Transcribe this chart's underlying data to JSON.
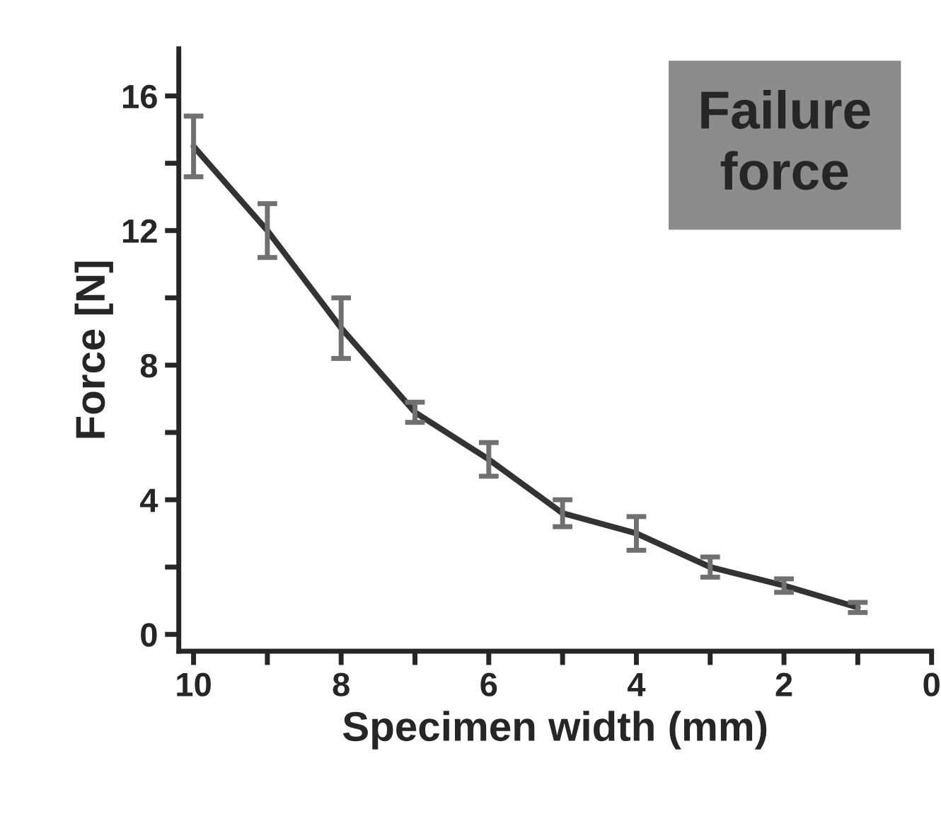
{
  "chart_data": {
    "type": "line",
    "xlabel": "Specimen width (mm)",
    "ylabel": "Force [N]",
    "annotations": [
      "Failure\nforce"
    ],
    "x": [
      10,
      9,
      8,
      7,
      6,
      5,
      4,
      3,
      2,
      1
    ],
    "series": [
      {
        "color": "#333333",
        "values": [
          14.5,
          12.0,
          9.1,
          6.6,
          5.2,
          3.6,
          3.0,
          2.0,
          1.45,
          0.8
        ],
        "errors": [
          0.9,
          0.8,
          0.9,
          0.3,
          0.5,
          0.4,
          0.5,
          0.3,
          0.2,
          0.15
        ]
      }
    ],
    "xlim": [
      10.2,
      0
    ],
    "ylim": [
      -0.5,
      17.4
    ],
    "xticks": [
      10,
      {
        "value": 9,
        "label": null
      },
      8,
      {
        "value": 7,
        "label": null
      },
      6,
      {
        "value": 5,
        "label": null
      },
      4,
      {
        "value": 3,
        "label": null
      },
      2,
      {
        "value": 1,
        "label": null
      },
      0
    ],
    "yticks": [
      0,
      {
        "value": 2,
        "label": null
      },
      4,
      {
        "value": 6,
        "label": null
      },
      8,
      {
        "value": 10,
        "label": null
      },
      12,
      {
        "value": 14,
        "label": null
      },
      16
    ],
    "grid": false,
    "marker": "none",
    "line_style": "solid"
  }
}
